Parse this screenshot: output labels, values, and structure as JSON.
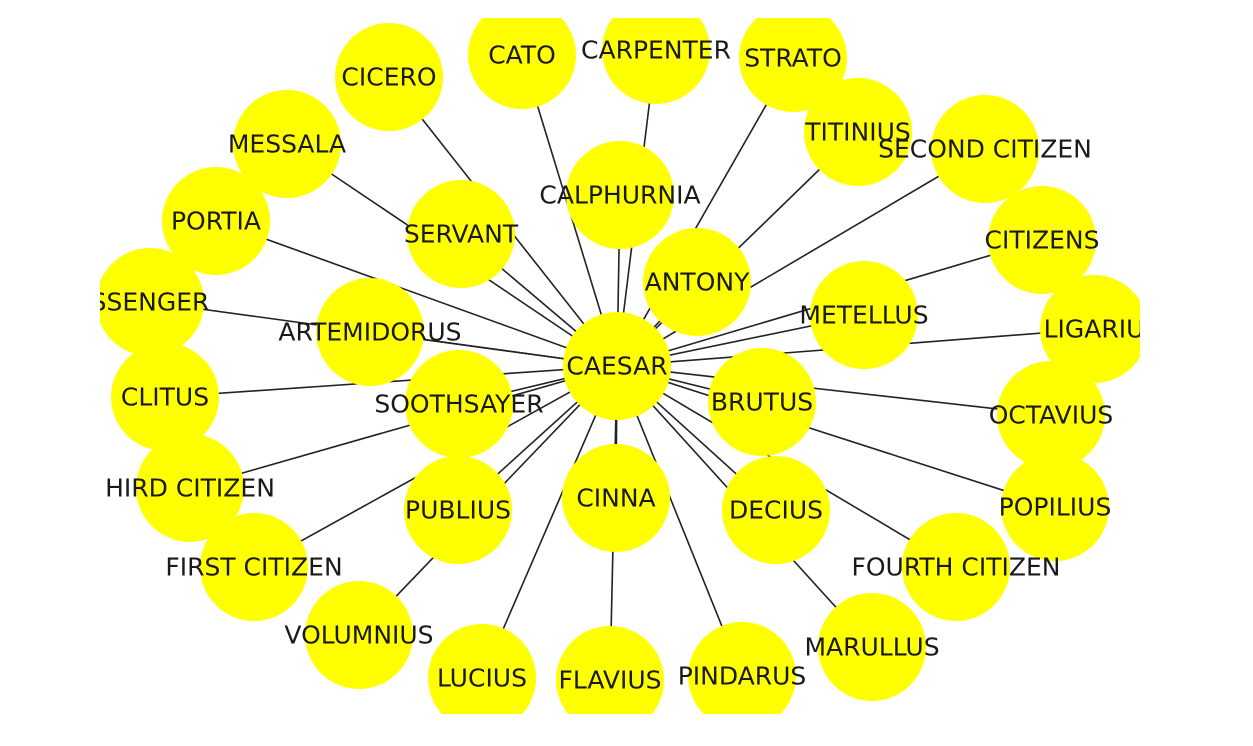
{
  "style": {
    "node_color": "#ffff00",
    "edge_color": "#222222",
    "label_color": "#1a1a1a"
  },
  "hub": "CAESAR",
  "nodes": [
    {
      "id": "CAESAR",
      "label": "CAESAR"
    },
    {
      "id": "CATO",
      "label": "CATO"
    },
    {
      "id": "CARPENTER",
      "label": "CARPENTER"
    },
    {
      "id": "STRATO",
      "label": "STRATO"
    },
    {
      "id": "CICERO",
      "label": "CICERO"
    },
    {
      "id": "TITINIUS",
      "label": "TITINIUS"
    },
    {
      "id": "SECOND CITIZEN",
      "label": "SECOND CITIZEN"
    },
    {
      "id": "MESSALA",
      "label": "MESSALA"
    },
    {
      "id": "CALPHURNIA",
      "label": "CALPHURNIA"
    },
    {
      "id": "PORTIA",
      "label": "PORTIA"
    },
    {
      "id": "SERVANT",
      "label": "SERVANT"
    },
    {
      "id": "CITIZENS",
      "label": "CITIZENS"
    },
    {
      "id": "ANTONY",
      "label": "ANTONY"
    },
    {
      "id": "MESSENGER",
      "label": "SSENGER"
    },
    {
      "id": "ARTEMIDORUS",
      "label": "ARTEMIDORUS"
    },
    {
      "id": "METELLUS",
      "label": "METELLUS"
    },
    {
      "id": "LIGARIUS",
      "label": "LIGARIU"
    },
    {
      "id": "CLITUS",
      "label": "CLITUS"
    },
    {
      "id": "SOOTHSAYER",
      "label": "SOOTHSAYER"
    },
    {
      "id": "BRUTUS",
      "label": "BRUTUS"
    },
    {
      "id": "OCTAVIUS",
      "label": "OCTAVIUS"
    },
    {
      "id": "THIRD CITIZEN",
      "label": "HIRD CITIZEN"
    },
    {
      "id": "PUBLIUS",
      "label": "PUBLIUS"
    },
    {
      "id": "CINNA",
      "label": "CINNA"
    },
    {
      "id": "DECIUS",
      "label": "DECIUS"
    },
    {
      "id": "POPILIUS",
      "label": "POPILIUS"
    },
    {
      "id": "FIRST CITIZEN",
      "label": "FIRST CITIZEN"
    },
    {
      "id": "FOURTH CITIZEN",
      "label": "FOURTH CITIZEN"
    },
    {
      "id": "VOLUMNIUS",
      "label": "VOLUMNIUS"
    },
    {
      "id": "MARULLUS",
      "label": "MARULLUS"
    },
    {
      "id": "LUCIUS",
      "label": "LUCIUS"
    },
    {
      "id": "FLAVIUS",
      "label": "FLAVIUS"
    },
    {
      "id": "PINDARUS",
      "label": "PINDARUS"
    }
  ],
  "edges": [
    [
      "CAESAR",
      "CATO"
    ],
    [
      "CAESAR",
      "CARPENTER"
    ],
    [
      "CAESAR",
      "STRATO"
    ],
    [
      "CAESAR",
      "CICERO"
    ],
    [
      "CAESAR",
      "TITINIUS"
    ],
    [
      "CAESAR",
      "SECOND CITIZEN"
    ],
    [
      "CAESAR",
      "MESSALA"
    ],
    [
      "CAESAR",
      "CALPHURNIA"
    ],
    [
      "CAESAR",
      "PORTIA"
    ],
    [
      "CAESAR",
      "SERVANT"
    ],
    [
      "CAESAR",
      "CITIZENS"
    ],
    [
      "CAESAR",
      "ANTONY"
    ],
    [
      "CAESAR",
      "MESSENGER"
    ],
    [
      "CAESAR",
      "ARTEMIDORUS"
    ],
    [
      "CAESAR",
      "METELLUS"
    ],
    [
      "CAESAR",
      "LIGARIUS"
    ],
    [
      "CAESAR",
      "CLITUS"
    ],
    [
      "CAESAR",
      "SOOTHSAYER"
    ],
    [
      "CAESAR",
      "BRUTUS"
    ],
    [
      "CAESAR",
      "OCTAVIUS"
    ],
    [
      "CAESAR",
      "THIRD CITIZEN"
    ],
    [
      "CAESAR",
      "PUBLIUS"
    ],
    [
      "CAESAR",
      "CINNA"
    ],
    [
      "CAESAR",
      "DECIUS"
    ],
    [
      "CAESAR",
      "POPILIUS"
    ],
    [
      "CAESAR",
      "FIRST CITIZEN"
    ],
    [
      "CAESAR",
      "FOURTH CITIZEN"
    ],
    [
      "CAESAR",
      "VOLUMNIUS"
    ],
    [
      "CAESAR",
      "MARULLUS"
    ],
    [
      "CAESAR",
      "LUCIUS"
    ],
    [
      "CAESAR",
      "FLAVIUS"
    ],
    [
      "CAESAR",
      "PINDARUS"
    ]
  ]
}
